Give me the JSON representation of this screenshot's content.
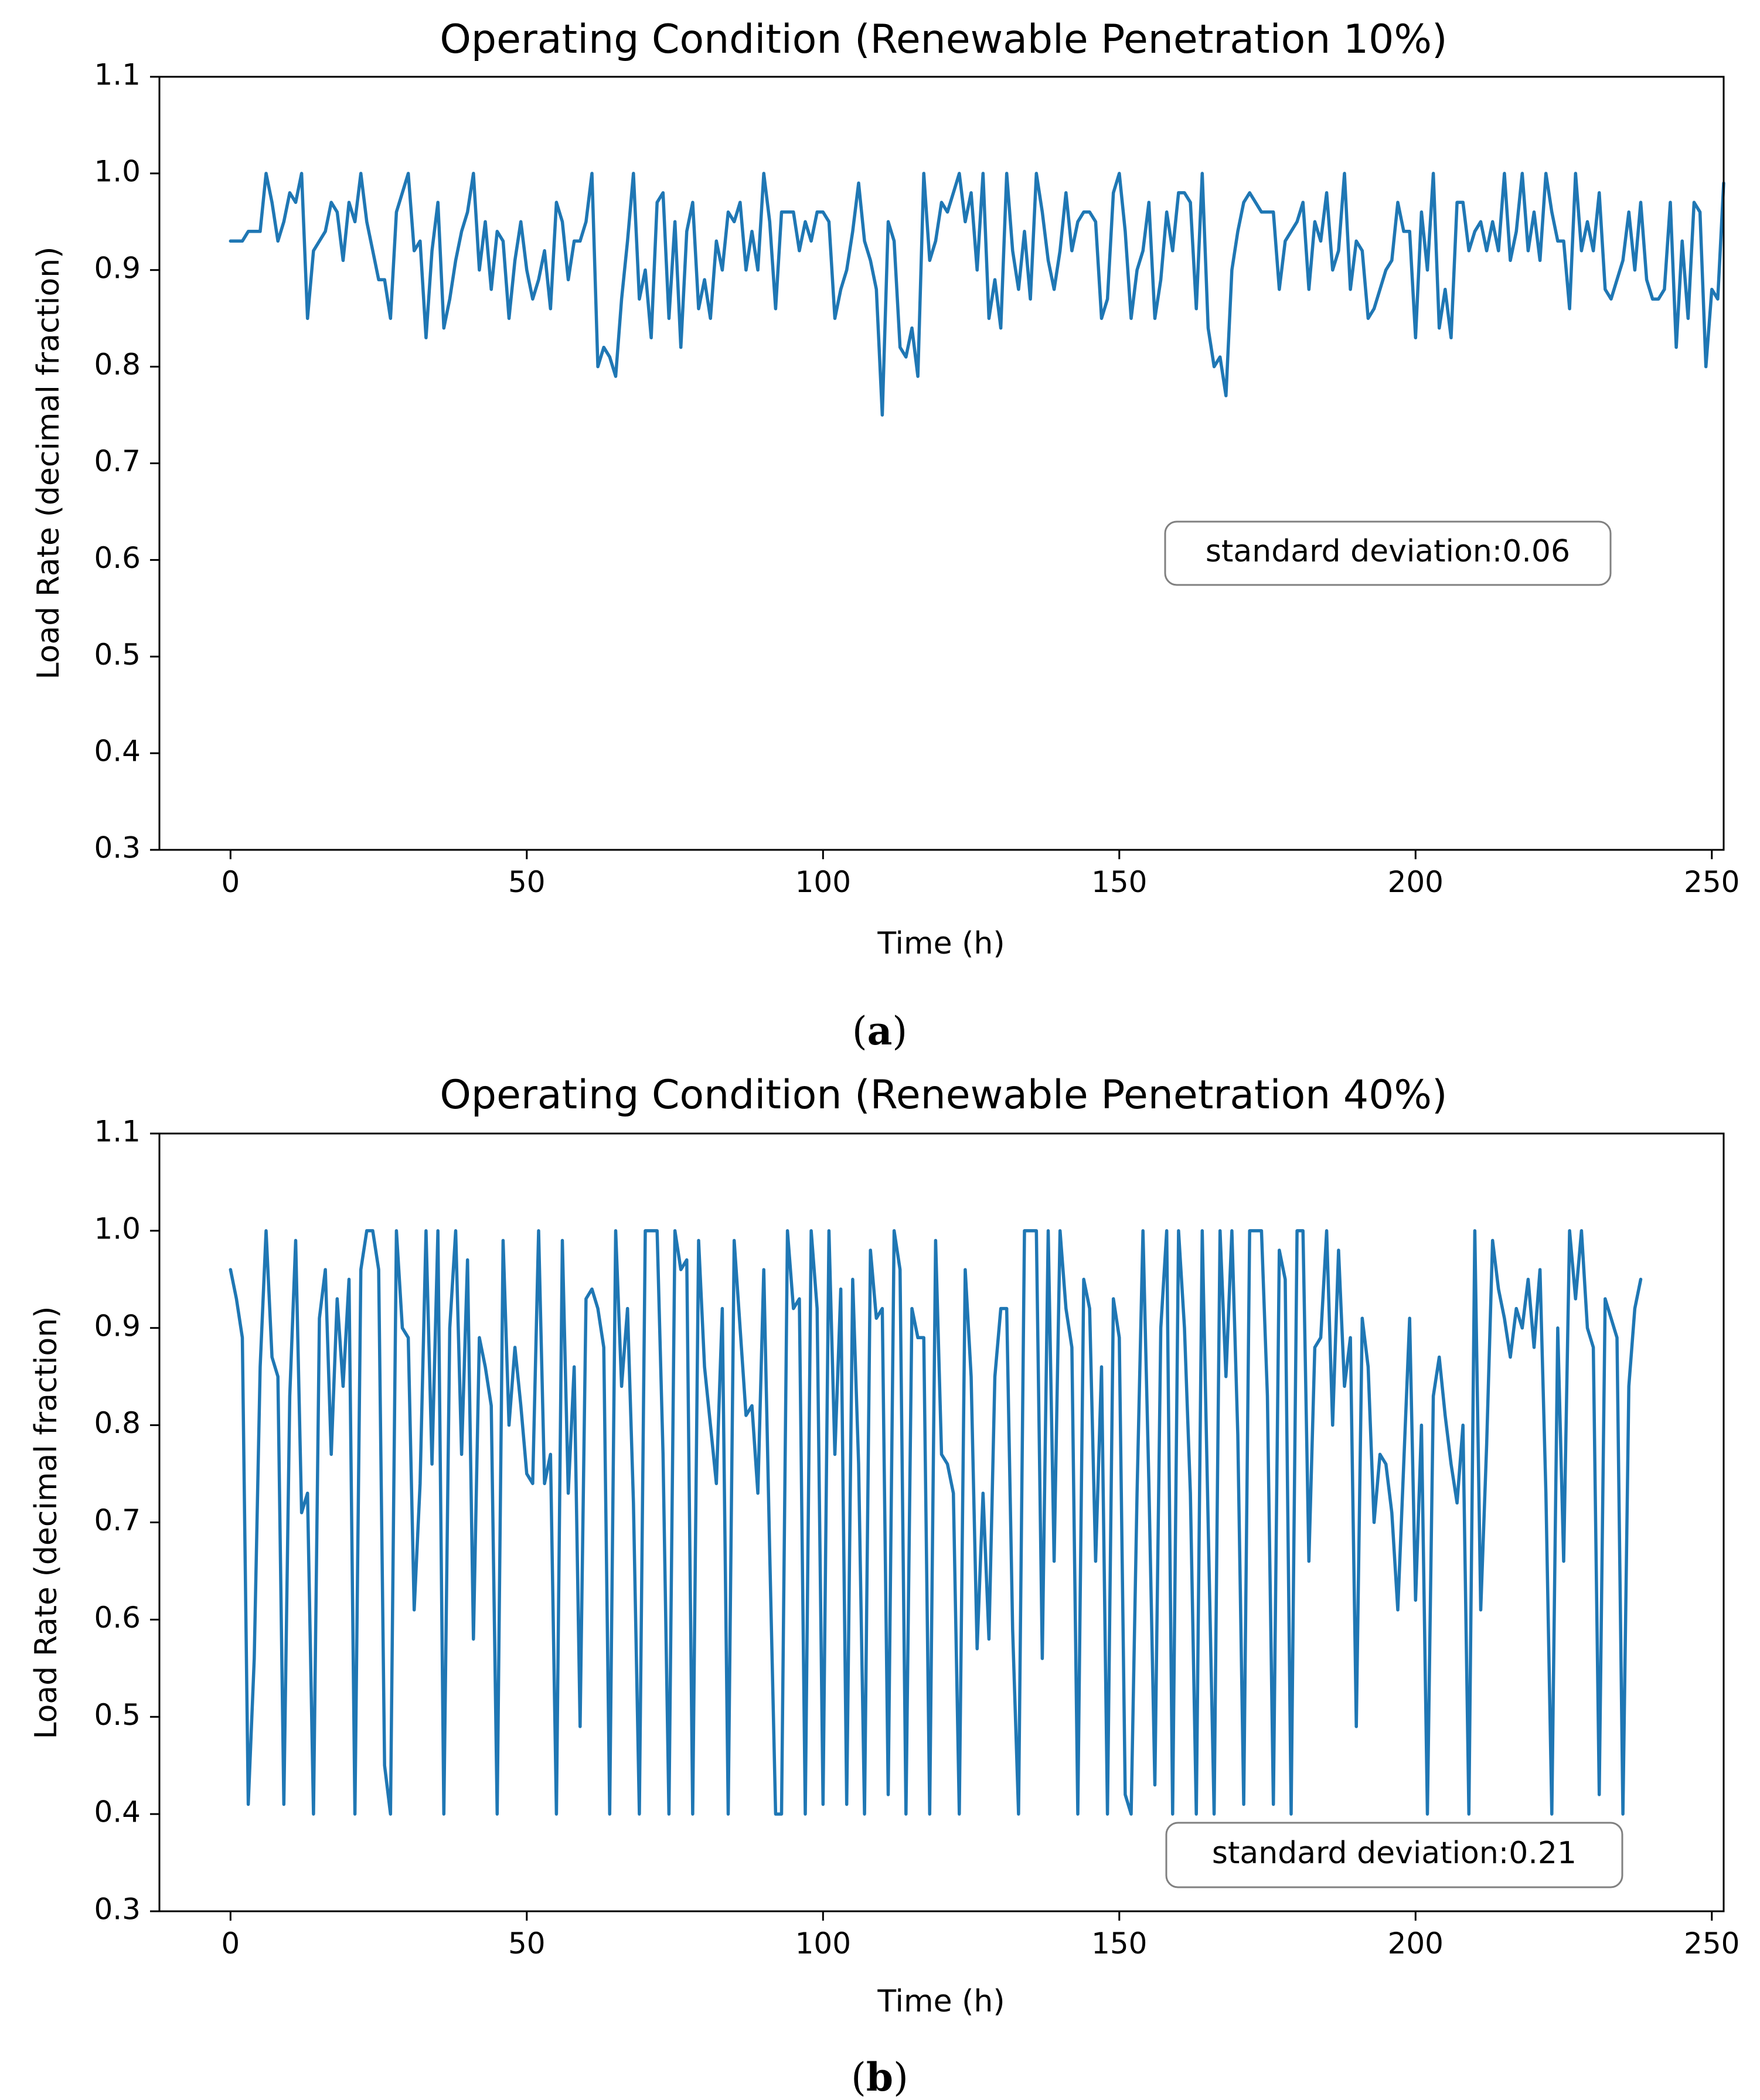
{
  "figure": {
    "line_color": "#1f77b4",
    "panels": [
      {
        "label": "a"
      },
      {
        "label": "b"
      }
    ]
  },
  "chart_data": [
    {
      "type": "line",
      "title": "Operating Condition (Renewable Penetration 10%)",
      "xlabel": "Time (h)",
      "ylabel": "Load Rate (decimal fraction)",
      "xlim": [
        -12,
        252
      ],
      "ylim": [
        0.3,
        1.1
      ],
      "xticks": [
        0,
        50,
        100,
        150,
        200,
        250
      ],
      "xtick_labels": [
        "0",
        "50",
        "100",
        "150",
        "200",
        "250"
      ],
      "yticks": [
        0.3,
        0.4,
        0.5,
        0.6,
        0.7,
        0.8,
        0.9,
        1.0,
        1.1
      ],
      "ytick_labels": [
        "0.3",
        "0.4",
        "0.5",
        "0.6",
        "0.7",
        "0.8",
        "0.9",
        "1.0",
        "1.1"
      ],
      "grid": false,
      "annotation": {
        "text": "standard deviation:0.06",
        "x": 195,
        "y": 0.61
      },
      "series": [
        {
          "name": "Load Rate",
          "x_start": 0,
          "x_step": 1,
          "values": [
            0.93,
            0.93,
            0.93,
            0.94,
            0.94,
            0.94,
            1.0,
            0.97,
            0.93,
            0.95,
            0.98,
            0.97,
            1.0,
            0.85,
            0.92,
            0.93,
            0.94,
            0.97,
            0.96,
            0.91,
            0.97,
            0.95,
            1.0,
            0.95,
            0.92,
            0.89,
            0.89,
            0.85,
            0.96,
            0.98,
            1.0,
            0.92,
            0.93,
            0.83,
            0.92,
            0.97,
            0.84,
            0.87,
            0.91,
            0.94,
            0.96,
            1.0,
            0.9,
            0.95,
            0.88,
            0.94,
            0.93,
            0.85,
            0.91,
            0.95,
            0.9,
            0.87,
            0.89,
            0.92,
            0.86,
            0.97,
            0.95,
            0.89,
            0.93,
            0.93,
            0.95,
            1.0,
            0.8,
            0.82,
            0.81,
            0.79,
            0.87,
            0.93,
            1.0,
            0.87,
            0.9,
            0.83,
            0.97,
            0.98,
            0.85,
            0.95,
            0.82,
            0.94,
            0.97,
            0.86,
            0.89,
            0.85,
            0.93,
            0.9,
            0.96,
            0.95,
            0.97,
            0.9,
            0.94,
            0.9,
            1.0,
            0.95,
            0.86,
            0.96,
            0.96,
            0.96,
            0.92,
            0.95,
            0.93,
            0.96,
            0.96,
            0.95,
            0.85,
            0.88,
            0.9,
            0.94,
            0.99,
            0.93,
            0.91,
            0.88,
            0.75,
            0.95,
            0.93,
            0.82,
            0.81,
            0.84,
            0.79,
            1.0,
            0.91,
            0.93,
            0.97,
            0.96,
            0.98,
            1.0,
            0.95,
            0.98,
            0.9,
            1.0,
            0.85,
            0.89,
            0.84,
            1.0,
            0.92,
            0.88,
            0.94,
            0.87,
            1.0,
            0.96,
            0.91,
            0.88,
            0.92,
            0.98,
            0.92,
            0.95,
            0.96,
            0.96,
            0.95,
            0.85,
            0.87,
            0.98,
            1.0,
            0.94,
            0.85,
            0.9,
            0.92,
            0.97,
            0.85,
            0.89,
            0.96,
            0.92,
            0.98,
            0.98,
            0.97,
            0.86,
            1.0,
            0.84,
            0.8,
            0.81,
            0.77,
            0.9,
            0.94,
            0.97,
            0.98,
            0.97,
            0.96,
            0.96,
            0.96,
            0.88,
            0.93,
            0.94,
            0.95,
            0.97,
            0.88,
            0.95,
            0.93,
            0.98,
            0.9,
            0.92,
            1.0,
            0.88,
            0.93,
            0.92,
            0.85,
            0.86,
            0.88,
            0.9,
            0.91,
            0.97,
            0.94,
            0.94,
            0.83,
            0.96,
            0.9,
            1.0,
            0.84,
            0.88,
            0.83,
            0.97,
            0.97,
            0.92,
            0.94,
            0.95,
            0.92,
            0.95,
            0.92,
            1.0,
            0.91,
            0.94,
            1.0,
            0.92,
            0.96,
            0.91,
            1.0,
            0.96,
            0.93,
            0.93,
            0.86,
            1.0,
            0.92,
            0.95,
            0.92,
            0.98,
            0.88,
            0.87,
            0.89,
            0.91,
            0.96,
            0.9,
            0.97,
            0.89,
            0.87,
            0.87,
            0.88,
            0.97,
            0.82,
            0.93,
            0.85,
            0.97,
            0.96,
            0.8,
            0.88,
            0.87,
            0.99
          ]
        }
      ]
    },
    {
      "type": "line",
      "title": "Operating Condition (Renewable Penetration 40%)",
      "xlabel": "Time (h)",
      "ylabel": "Load Rate (decimal fraction)",
      "xlim": [
        -12,
        252
      ],
      "ylim": [
        0.3,
        1.1
      ],
      "xticks": [
        0,
        50,
        100,
        150,
        200,
        250
      ],
      "xtick_labels": [
        "0",
        "50",
        "100",
        "150",
        "200",
        "250"
      ],
      "yticks": [
        0.3,
        0.4,
        0.5,
        0.6,
        0.7,
        0.8,
        0.9,
        1.0,
        1.1
      ],
      "ytick_labels": [
        "0.3",
        "0.4",
        "0.5",
        "0.6",
        "0.7",
        "0.8",
        "0.9",
        "1.0",
        "1.1"
      ],
      "grid": false,
      "annotation": {
        "text": "standard deviation:0.21",
        "x": 195,
        "y": 0.36
      },
      "series": [
        {
          "name": "Load Rate",
          "x_start": 0,
          "x_step": 1,
          "values": [
            0.96,
            0.93,
            0.89,
            0.41,
            0.56,
            0.86,
            1.0,
            0.87,
            0.85,
            0.41,
            0.83,
            0.99,
            0.71,
            0.73,
            0.4,
            0.91,
            0.96,
            0.77,
            0.93,
            0.84,
            0.95,
            0.4,
            0.96,
            1.0,
            1.0,
            0.96,
            0.45,
            0.4,
            1.0,
            0.9,
            0.89,
            0.61,
            0.74,
            1.0,
            0.76,
            1.0,
            0.4,
            0.9,
            1.0,
            0.77,
            0.97,
            0.58,
            0.89,
            0.86,
            0.82,
            0.4,
            0.99,
            0.8,
            0.88,
            0.82,
            0.75,
            0.74,
            1.0,
            0.74,
            0.77,
            0.4,
            0.99,
            0.73,
            0.86,
            0.49,
            0.93,
            0.94,
            0.92,
            0.88,
            0.4,
            1.0,
            0.84,
            0.92,
            0.72,
            0.4,
            1.0,
            1.0,
            1.0,
            0.77,
            0.4,
            1.0,
            0.96,
            0.97,
            0.4,
            0.99,
            0.86,
            0.8,
            0.74,
            0.92,
            0.4,
            0.99,
            0.9,
            0.81,
            0.82,
            0.73,
            0.96,
            0.67,
            0.4,
            0.4,
            1.0,
            0.92,
            0.93,
            0.4,
            1.0,
            0.92,
            0.41,
            1.0,
            0.77,
            0.94,
            0.41,
            0.95,
            0.76,
            0.4,
            0.98,
            0.91,
            0.92,
            0.42,
            1.0,
            0.96,
            0.4,
            0.92,
            0.89,
            0.89,
            0.4,
            0.99,
            0.77,
            0.76,
            0.73,
            0.4,
            0.96,
            0.85,
            0.57,
            0.73,
            0.58,
            0.85,
            0.92,
            0.92,
            0.59,
            0.4,
            1.0,
            1.0,
            1.0,
            0.56,
            1.0,
            0.66,
            1.0,
            0.92,
            0.88,
            0.4,
            0.95,
            0.92,
            0.66,
            0.86,
            0.4,
            0.93,
            0.89,
            0.42,
            0.4,
            0.73,
            1.0,
            0.74,
            0.43,
            0.9,
            1.0,
            0.4,
            1.0,
            0.9,
            0.73,
            0.4,
            1.0,
            0.7,
            0.4,
            1.0,
            0.85,
            1.0,
            0.79,
            0.41,
            1.0,
            1.0,
            1.0,
            0.83,
            0.41,
            0.98,
            0.95,
            0.4,
            1.0,
            1.0,
            0.66,
            0.88,
            0.89,
            1.0,
            0.8,
            0.98,
            0.84,
            0.89,
            0.49,
            0.91,
            0.86,
            0.7,
            0.77,
            0.76,
            0.71,
            0.61,
            0.76,
            0.91,
            0.62,
            0.8,
            0.4,
            0.83,
            0.87,
            0.81,
            0.76,
            0.72,
            0.8,
            0.4,
            1.0,
            0.61,
            0.78,
            0.99,
            0.94,
            0.91,
            0.87,
            0.92,
            0.9,
            0.95,
            0.88,
            0.96,
            0.73,
            0.4,
            0.9,
            0.66,
            1.0,
            0.93,
            1.0,
            0.9,
            0.88,
            0.42,
            0.93,
            0.91,
            0.89,
            0.4,
            0.84,
            0.92,
            0.95
          ]
        }
      ]
    }
  ]
}
